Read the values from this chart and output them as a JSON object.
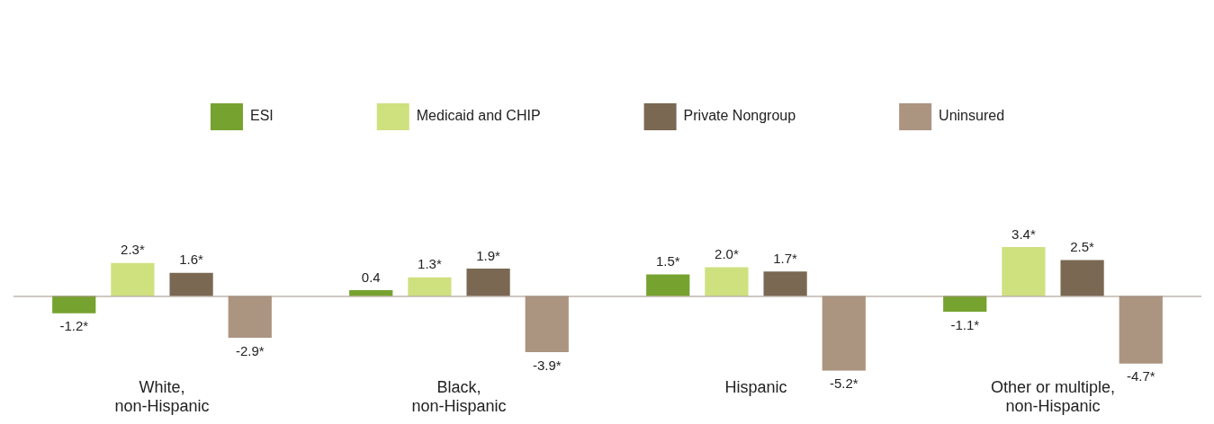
{
  "chart_data": {
    "type": "bar",
    "categories": [
      "White, non-Hispanic",
      "Black, non-Hispanic",
      "Hispanic",
      "Other or multiple, non-Hispanic"
    ],
    "series": [
      {
        "name": "ESI",
        "color": "#76a22f",
        "values": [
          -1.2,
          0.4,
          1.5,
          -1.1
        ],
        "value_labels": [
          "-1.2*",
          "0.4",
          "1.5*",
          "-1.1*"
        ]
      },
      {
        "name": "Medicaid and CHIP",
        "color": "#cfe07f",
        "values": [
          2.3,
          1.3,
          2.0,
          3.4
        ],
        "value_labels": [
          "2.3*",
          "1.3*",
          "2.0*",
          "3.4*"
        ]
      },
      {
        "name": "Private Nongroup",
        "color": "#7a6853",
        "values": [
          1.6,
          1.9,
          1.7,
          2.5
        ],
        "value_labels": [
          "1.6*",
          "1.9*",
          "1.7*",
          "2.5*"
        ]
      },
      {
        "name": "Uninsured",
        "color": "#ab9480",
        "values": [
          -2.9,
          -3.9,
          -5.2,
          -4.7
        ],
        "value_labels": [
          "-2.9*",
          "-3.9*",
          "-5.2*",
          "-4.7*"
        ]
      }
    ],
    "legend": "top"
  }
}
